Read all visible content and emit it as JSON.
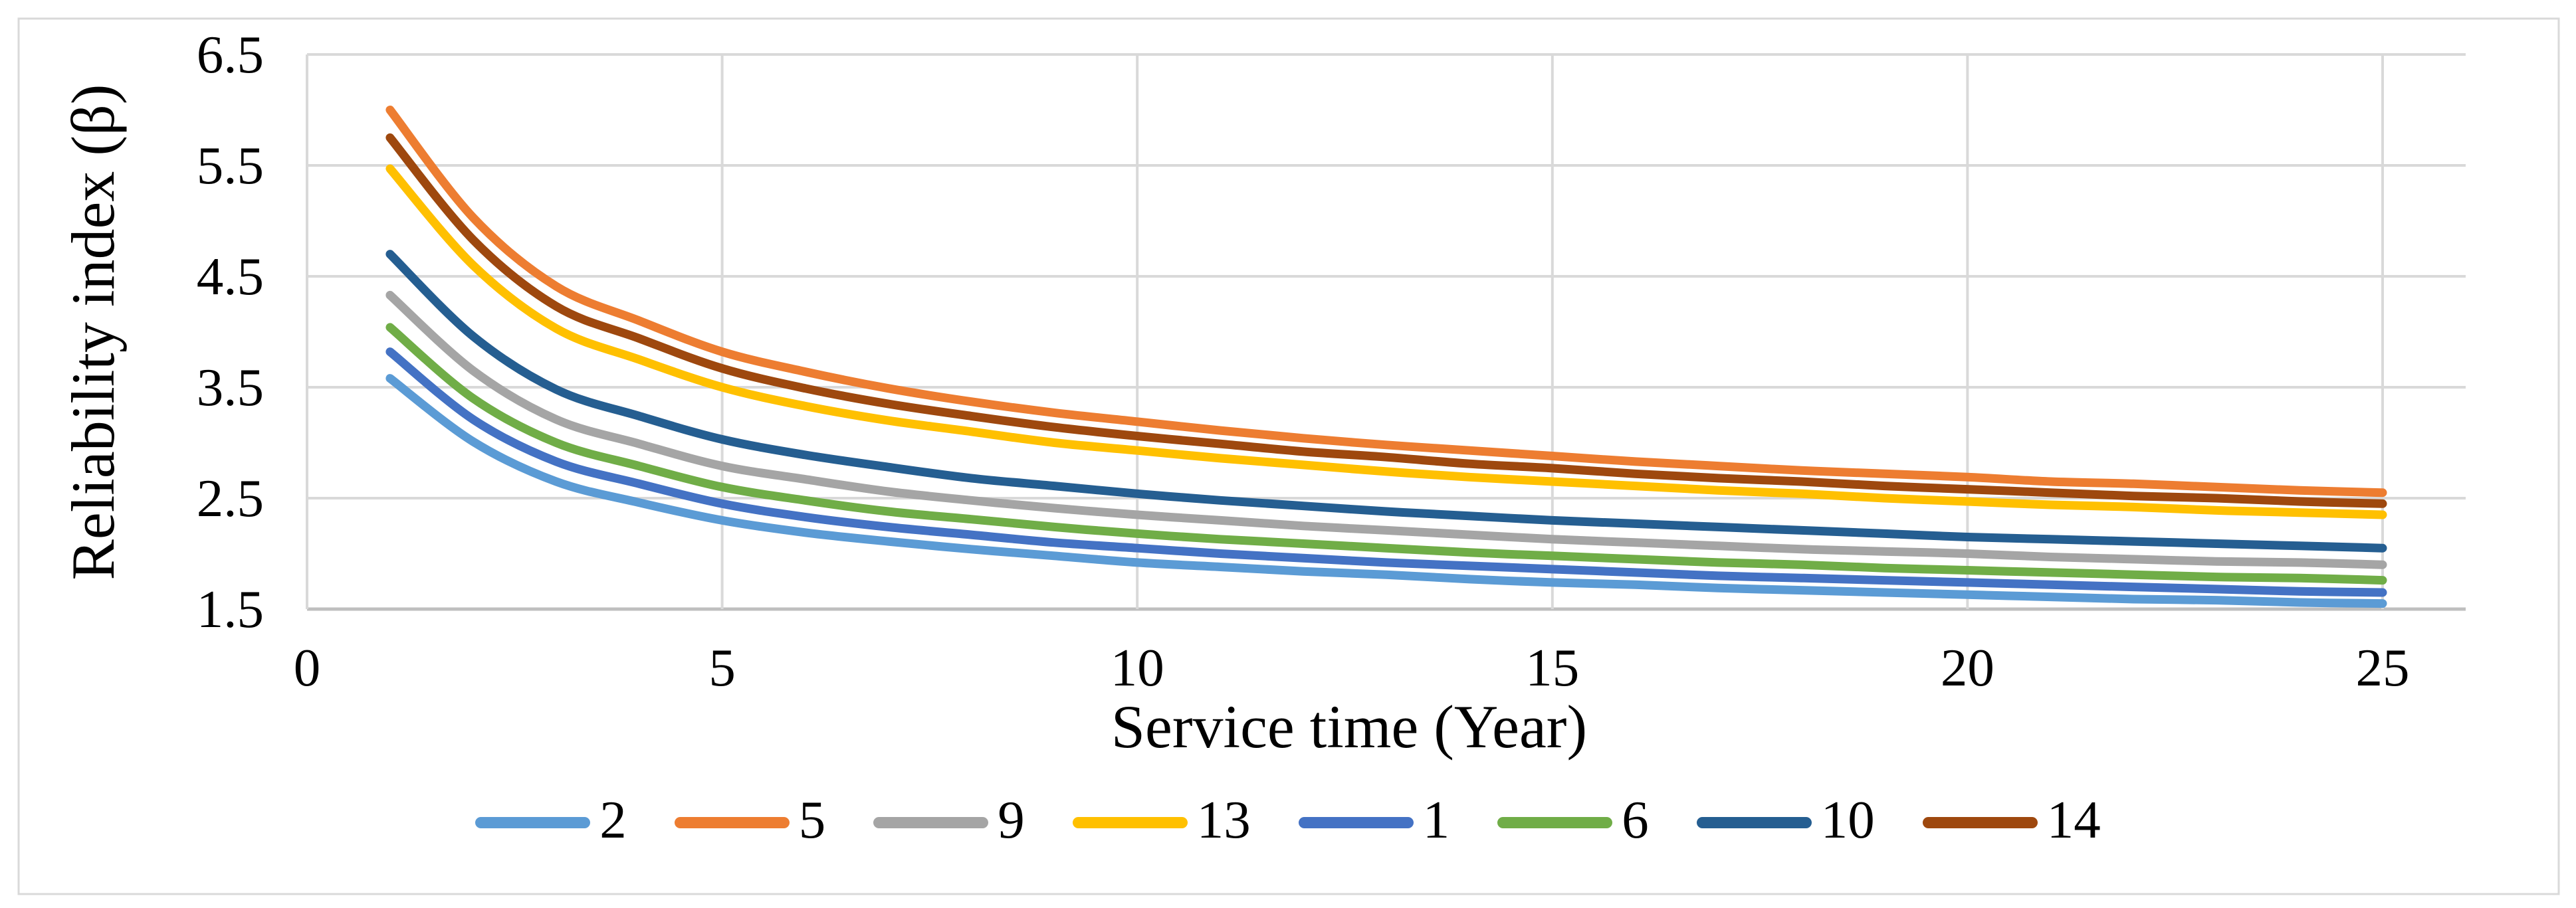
{
  "figure": {
    "background": "#FFFFFF",
    "border_color": "#D9D9D9"
  },
  "chart_data": {
    "type": "line",
    "title": "",
    "xlabel": "Service time (Year)",
    "ylabel": "Reliability index (β)",
    "x_ticks": [
      "0",
      "5",
      "10",
      "15",
      "20",
      "25"
    ],
    "y_ticks": [
      "6.5",
      "5.5",
      "4.5",
      "3.5",
      "2.5",
      "1.5"
    ],
    "xlim": [
      0,
      26
    ],
    "ylim": [
      1.5,
      6.5
    ],
    "grid": true,
    "gridline_color": "#D9D9D9",
    "axis_line_color": "#BFBFBF",
    "legend_position": "bottom",
    "x": [
      1,
      2,
      3,
      4,
      5,
      6,
      7,
      8,
      9,
      10,
      11,
      12,
      13,
      14,
      15,
      16,
      17,
      18,
      19,
      20,
      21,
      22,
      23,
      24,
      25
    ],
    "series": [
      {
        "name": "2",
        "color": "#5B9BD5",
        "values": [
          3.58,
          3.01,
          2.65,
          2.46,
          2.3,
          2.19,
          2.11,
          2.04,
          1.98,
          1.92,
          1.88,
          1.84,
          1.81,
          1.77,
          1.74,
          1.72,
          1.69,
          1.67,
          1.65,
          1.63,
          1.61,
          1.59,
          1.58,
          1.56,
          1.55
        ]
      },
      {
        "name": "5",
        "color": "#ED7D31",
        "values": [
          6.0,
          5.03,
          4.41,
          4.1,
          3.82,
          3.64,
          3.49,
          3.37,
          3.27,
          3.19,
          3.11,
          3.04,
          2.98,
          2.93,
          2.88,
          2.83,
          2.79,
          2.75,
          2.72,
          2.69,
          2.65,
          2.63,
          2.6,
          2.57,
          2.55
        ]
      },
      {
        "name": "9",
        "color": "#A5A5A5",
        "values": [
          4.33,
          3.65,
          3.21,
          2.99,
          2.79,
          2.67,
          2.56,
          2.48,
          2.41,
          2.35,
          2.3,
          2.25,
          2.21,
          2.17,
          2.13,
          2.1,
          2.07,
          2.04,
          2.02,
          2.0,
          1.97,
          1.95,
          1.93,
          1.92,
          1.9
        ]
      },
      {
        "name": "13",
        "color": "#FFC000",
        "values": [
          5.47,
          4.6,
          4.03,
          3.75,
          3.5,
          3.33,
          3.2,
          3.1,
          3.0,
          2.93,
          2.86,
          2.8,
          2.74,
          2.69,
          2.65,
          2.61,
          2.57,
          2.54,
          2.5,
          2.47,
          2.44,
          2.42,
          2.39,
          2.37,
          2.35
        ]
      },
      {
        "name": "1",
        "color": "#4472C4",
        "values": [
          3.82,
          3.21,
          2.83,
          2.63,
          2.45,
          2.33,
          2.24,
          2.17,
          2.1,
          2.05,
          2.0,
          1.96,
          1.92,
          1.89,
          1.86,
          1.83,
          1.8,
          1.78,
          1.76,
          1.74,
          1.72,
          1.7,
          1.68,
          1.66,
          1.65
        ]
      },
      {
        "name": "6",
        "color": "#70AD47",
        "values": [
          4.04,
          3.4,
          3.0,
          2.79,
          2.6,
          2.48,
          2.38,
          2.31,
          2.24,
          2.18,
          2.13,
          2.09,
          2.05,
          2.01,
          1.98,
          1.95,
          1.92,
          1.9,
          1.87,
          1.85,
          1.83,
          1.81,
          1.79,
          1.78,
          1.76
        ]
      },
      {
        "name": "10",
        "color": "#255E91",
        "values": [
          4.7,
          3.96,
          3.48,
          3.24,
          3.03,
          2.89,
          2.78,
          2.68,
          2.61,
          2.54,
          2.48,
          2.43,
          2.38,
          2.34,
          2.3,
          2.27,
          2.24,
          2.21,
          2.18,
          2.15,
          2.13,
          2.11,
          2.09,
          2.07,
          2.05
        ]
      },
      {
        "name": "14",
        "color": "#9E480E",
        "values": [
          5.75,
          4.83,
          4.23,
          3.94,
          3.67,
          3.49,
          3.35,
          3.24,
          3.14,
          3.06,
          2.99,
          2.92,
          2.87,
          2.81,
          2.77,
          2.72,
          2.68,
          2.65,
          2.61,
          2.58,
          2.55,
          2.52,
          2.5,
          2.47,
          2.45
        ]
      }
    ]
  }
}
